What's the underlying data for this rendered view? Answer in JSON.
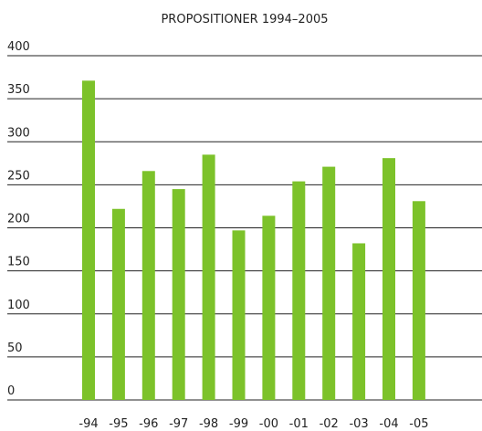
{
  "chart_data": {
    "type": "bar",
    "title": "PROPOSITIONER 1994–2005",
    "categories": [
      "-94",
      "-95",
      "-96",
      "-97",
      "-98",
      "-99",
      "-00",
      "-01",
      "-02",
      "-03",
      "-04",
      "-05"
    ],
    "values": [
      371,
      222,
      266,
      245,
      285,
      197,
      214,
      254,
      271,
      182,
      281,
      231
    ],
    "color": "#7cc22a",
    "ylim": [
      0,
      400
    ],
    "yticks": [
      0,
      50,
      100,
      150,
      200,
      250,
      300,
      350,
      400
    ],
    "grid": true
  }
}
